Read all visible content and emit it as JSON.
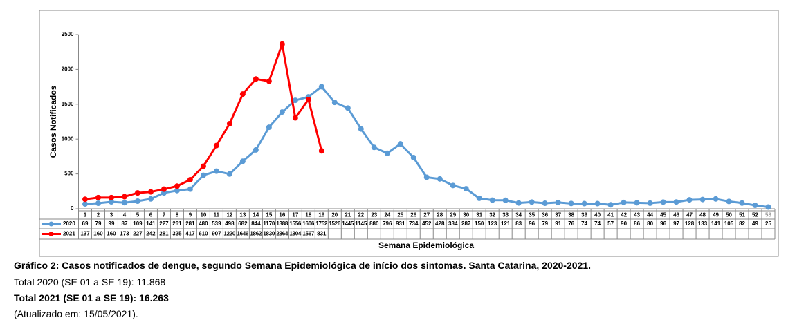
{
  "chart_data": {
    "type": "line",
    "ylabel": "Casos Notificados",
    "xlabel": "Semana Epidemiológica",
    "categories": [
      "1",
      "2",
      "3",
      "4",
      "5",
      "6",
      "7",
      "8",
      "9",
      "10",
      "11",
      "12",
      "13",
      "14",
      "15",
      "16",
      "17",
      "18",
      "19",
      "20",
      "21",
      "22",
      "23",
      "24",
      "25",
      "26",
      "27",
      "28",
      "29",
      "30",
      "31",
      "32",
      "33",
      "34",
      "35",
      "36",
      "37",
      "38",
      "39",
      "40",
      "41",
      "42",
      "43",
      "44",
      "45",
      "46",
      "47",
      "48",
      "49",
      "50",
      "51",
      "52",
      "53"
    ],
    "series": [
      {
        "name": "2020",
        "color": "#5b9bd5",
        "values": [
          69,
          79,
          99,
          87,
          109,
          141,
          227,
          261,
          281,
          480,
          539,
          498,
          682,
          844,
          1170,
          1388,
          1556,
          1606,
          1752,
          1526,
          1445,
          1145,
          880,
          796,
          931,
          734,
          452,
          428,
          334,
          287,
          150,
          123,
          121,
          83,
          96,
          79,
          91,
          76,
          74,
          74,
          57,
          90,
          86,
          80,
          96,
          97,
          128,
          133,
          141,
          105,
          82,
          49,
          25
        ]
      },
      {
        "name": "2021",
        "color": "#ff0000",
        "values": [
          137,
          160,
          160,
          173,
          227,
          242,
          281,
          325,
          417,
          610,
          907,
          1220,
          1646,
          1862,
          1830,
          2364,
          1304,
          1567,
          831,
          null,
          null,
          null,
          null,
          null,
          null,
          null,
          null,
          null,
          null,
          null,
          null,
          null,
          null,
          null,
          null,
          null,
          null,
          null,
          null,
          null,
          null,
          null,
          null,
          null,
          null,
          null,
          null,
          null,
          null,
          null,
          null,
          null,
          null
        ]
      }
    ],
    "ylim": [
      0,
      2500
    ],
    "yticks": [
      0,
      500,
      1000,
      1500,
      2000,
      2500
    ],
    "caption": "Gráfico 2: Casos notificados de dengue, segundo Semana Epidemiológica de início dos sintomas. Santa Catarina, 2020-2021.",
    "notes": [
      "Total 2020 (SE 01 a SE 19): 11.868",
      "Total 2021 (SE 01 a SE 19): 16.263",
      "(Atualizado em: 15/05/2021)."
    ]
  }
}
